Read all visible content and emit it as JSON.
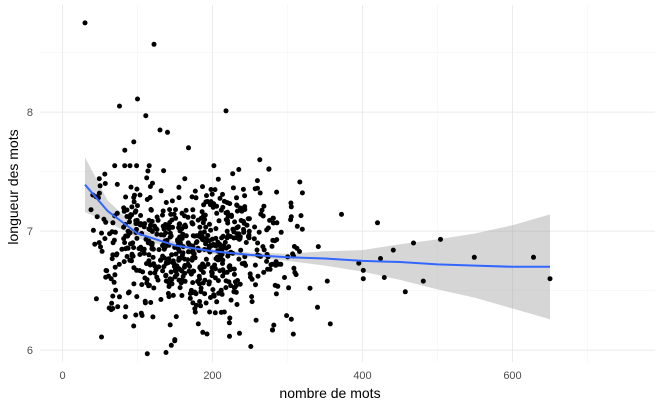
{
  "chart_data": {
    "type": "scatter",
    "title": "",
    "xlabel": "nombre de mots",
    "ylabel": "longueur des mots",
    "xlim": [
      -30,
      790
    ],
    "ylim": [
      5.9,
      8.9
    ],
    "x_ticks": [
      0,
      200,
      400,
      600
    ],
    "y_ticks": [
      6,
      7,
      8
    ],
    "grid": true,
    "legend": "none",
    "colors": {
      "points": "#000000",
      "smooth_line": "#3366FF",
      "ribbon": "#999999",
      "grid_major": "#EBEBEB",
      "grid_minor": "#F4F4F4"
    },
    "point_spread": {
      "x_center": 175,
      "x_sd": 70,
      "x_min": 40,
      "x_max": 320,
      "y_center": 6.85,
      "y_sd": 0.28,
      "y_min": 6.0,
      "y_max": 7.55,
      "count": 650,
      "seed": 7
    },
    "points": [
      [
        30,
        8.75
      ],
      [
        122,
        8.57
      ],
      [
        100,
        8.11
      ],
      [
        218,
        8.01
      ],
      [
        76,
        8.05
      ],
      [
        111,
        7.97
      ],
      [
        95,
        7.75
      ],
      [
        130,
        7.85
      ],
      [
        83,
        7.68
      ],
      [
        140,
        7.83
      ],
      [
        168,
        7.7
      ],
      [
        263,
        7.6
      ],
      [
        275,
        7.52
      ],
      [
        372,
        7.14
      ],
      [
        420,
        7.07
      ],
      [
        504,
        6.93
      ],
      [
        468,
        6.9
      ],
      [
        441,
        6.84
      ],
      [
        424,
        6.77
      ],
      [
        549,
        6.78
      ],
      [
        628,
        6.78
      ],
      [
        650,
        6.6
      ],
      [
        429,
        6.61
      ],
      [
        401,
        6.6
      ],
      [
        401,
        6.67
      ],
      [
        481,
        6.58
      ],
      [
        457,
        6.49
      ],
      [
        353,
        6.58
      ],
      [
        357,
        6.22
      ],
      [
        395,
        6.73
      ],
      [
        52,
        6.11
      ],
      [
        43,
        6.89
      ],
      [
        38,
        7.18
      ],
      [
        57,
        7.4
      ],
      [
        49,
        7.44
      ],
      [
        113,
        5.97
      ],
      [
        145,
        6.04
      ],
      [
        138,
        5.98
      ],
      [
        181,
        6.22
      ],
      [
        251,
        6.03
      ],
      [
        305,
        6.26
      ],
      [
        340,
        6.36
      ],
      [
        330,
        6.52
      ],
      [
        341,
        6.87
      ],
      [
        313,
        7.04
      ],
      [
        305,
        7.12
      ],
      [
        260,
        7.36
      ],
      [
        232,
        7.28
      ],
      [
        198,
        7.35
      ],
      [
        178,
        7.28
      ],
      [
        163,
        7.44
      ],
      [
        223,
        6.27
      ],
      [
        280,
        6.17
      ],
      [
        105,
        6.31
      ],
      [
        65,
        6.34
      ],
      [
        73,
        7.15
      ],
      [
        201,
        7.2
      ],
      [
        246,
        7.05
      ],
      [
        187,
        6.15
      ],
      [
        99,
        6.45
      ]
    ],
    "smooth": {
      "x": [
        30,
        60,
        100,
        150,
        200,
        250,
        300,
        350,
        400,
        450,
        500,
        550,
        600,
        650
      ],
      "y": [
        7.39,
        7.17,
        6.98,
        6.88,
        6.83,
        6.8,
        6.78,
        6.77,
        6.75,
        6.74,
        6.72,
        6.71,
        6.7,
        6.7
      ],
      "lower": [
        7.16,
        7.08,
        6.94,
        6.85,
        6.81,
        6.78,
        6.75,
        6.71,
        6.66,
        6.59,
        6.51,
        6.44,
        6.35,
        6.26
      ],
      "upper": [
        7.62,
        7.26,
        7.02,
        6.91,
        6.85,
        6.82,
        6.81,
        6.83,
        6.84,
        6.89,
        6.93,
        6.98,
        7.05,
        7.14
      ]
    }
  }
}
